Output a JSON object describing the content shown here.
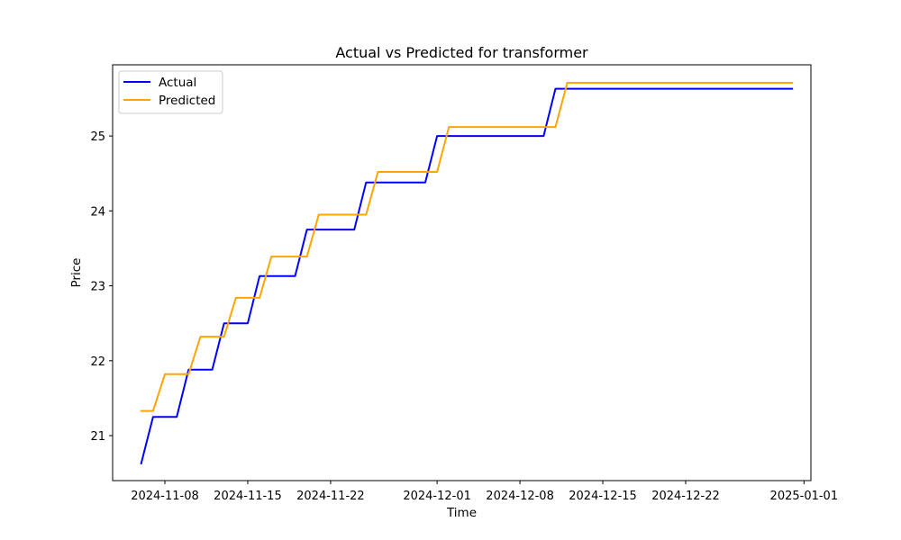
{
  "chart_data": {
    "type": "line",
    "title": "Actual vs Predicted for transformer",
    "xlabel": "Time",
    "ylabel": "Price",
    "x_ticks": [
      "2024-11-08",
      "2024-11-15",
      "2024-11-22",
      "2024-12-01",
      "2024-12-08",
      "2024-12-15",
      "2024-12-22",
      "2025-01-01"
    ],
    "y_ticks": [
      "21",
      "22",
      "23",
      "24",
      "25"
    ],
    "xlim": [
      "2024-11-03T14:00",
      "2025-01-01T14:00"
    ],
    "ylim": [
      20.4,
      25.95
    ],
    "grid": false,
    "legend": "top-left",
    "series": [
      {
        "name": "Actual",
        "color": "#0000ff",
        "points": [
          [
            "2024-11-06",
            20.63
          ],
          [
            "2024-11-07",
            21.25
          ],
          [
            "2024-11-08",
            21.25
          ],
          [
            "2024-11-09",
            21.25
          ],
          [
            "2024-11-10",
            21.88
          ],
          [
            "2024-11-11",
            21.88
          ],
          [
            "2024-11-12",
            21.88
          ],
          [
            "2024-11-13",
            22.5
          ],
          [
            "2024-11-14",
            22.5
          ],
          [
            "2024-11-15",
            22.5
          ],
          [
            "2024-11-16",
            23.13
          ],
          [
            "2024-11-17",
            23.13
          ],
          [
            "2024-11-18",
            23.13
          ],
          [
            "2024-11-19",
            23.13
          ],
          [
            "2024-11-20",
            23.75
          ],
          [
            "2024-11-21",
            23.75
          ],
          [
            "2024-11-22",
            23.75
          ],
          [
            "2024-11-23",
            23.75
          ],
          [
            "2024-11-24",
            23.75
          ],
          [
            "2024-11-25",
            24.38
          ],
          [
            "2024-11-26",
            24.38
          ],
          [
            "2024-11-27",
            24.38
          ],
          [
            "2024-11-28",
            24.38
          ],
          [
            "2024-11-29",
            24.38
          ],
          [
            "2024-11-30",
            24.38
          ],
          [
            "2024-12-01",
            25.0
          ],
          [
            "2024-12-02",
            25.0
          ],
          [
            "2024-12-03",
            25.0
          ],
          [
            "2024-12-04",
            25.0
          ],
          [
            "2024-12-05",
            25.0
          ],
          [
            "2024-12-06",
            25.0
          ],
          [
            "2024-12-07",
            25.0
          ],
          [
            "2024-12-08",
            25.0
          ],
          [
            "2024-12-09",
            25.0
          ],
          [
            "2024-12-10",
            25.0
          ],
          [
            "2024-12-11",
            25.63
          ],
          [
            "2024-12-12",
            25.63
          ],
          [
            "2024-12-13",
            25.63
          ],
          [
            "2024-12-14",
            25.63
          ],
          [
            "2024-12-15",
            25.63
          ],
          [
            "2024-12-16",
            25.63
          ],
          [
            "2024-12-17",
            25.63
          ],
          [
            "2024-12-18",
            25.63
          ],
          [
            "2024-12-19",
            25.63
          ],
          [
            "2024-12-20",
            25.63
          ],
          [
            "2024-12-21",
            25.63
          ],
          [
            "2024-12-22",
            25.63
          ],
          [
            "2024-12-23",
            25.63
          ],
          [
            "2024-12-24",
            25.63
          ],
          [
            "2024-12-25",
            25.63
          ],
          [
            "2024-12-26",
            25.63
          ],
          [
            "2024-12-27",
            25.63
          ],
          [
            "2024-12-28",
            25.63
          ],
          [
            "2024-12-29",
            25.63
          ],
          [
            "2024-12-30",
            25.63
          ],
          [
            "2024-12-31",
            25.63
          ]
        ]
      },
      {
        "name": "Predicted",
        "color": "#ffa500",
        "points": [
          [
            "2024-11-06",
            21.33
          ],
          [
            "2024-11-07",
            21.33
          ],
          [
            "2024-11-08",
            21.82
          ],
          [
            "2024-11-09",
            21.82
          ],
          [
            "2024-11-10",
            21.82
          ],
          [
            "2024-11-11",
            22.32
          ],
          [
            "2024-11-12",
            22.32
          ],
          [
            "2024-11-13",
            22.32
          ],
          [
            "2024-11-14",
            22.84
          ],
          [
            "2024-11-15",
            22.84
          ],
          [
            "2024-11-16",
            22.84
          ],
          [
            "2024-11-17",
            23.39
          ],
          [
            "2024-11-18",
            23.39
          ],
          [
            "2024-11-19",
            23.39
          ],
          [
            "2024-11-20",
            23.39
          ],
          [
            "2024-11-21",
            23.95
          ],
          [
            "2024-11-22",
            23.95
          ],
          [
            "2024-11-23",
            23.95
          ],
          [
            "2024-11-24",
            23.95
          ],
          [
            "2024-11-25",
            23.95
          ],
          [
            "2024-11-26",
            24.52
          ],
          [
            "2024-11-27",
            24.52
          ],
          [
            "2024-11-28",
            24.52
          ],
          [
            "2024-11-29",
            24.52
          ],
          [
            "2024-11-30",
            24.52
          ],
          [
            "2024-12-01",
            24.52
          ],
          [
            "2024-12-02",
            25.12
          ],
          [
            "2024-12-03",
            25.12
          ],
          [
            "2024-12-04",
            25.12
          ],
          [
            "2024-12-05",
            25.12
          ],
          [
            "2024-12-06",
            25.12
          ],
          [
            "2024-12-07",
            25.12
          ],
          [
            "2024-12-08",
            25.12
          ],
          [
            "2024-12-09",
            25.12
          ],
          [
            "2024-12-10",
            25.12
          ],
          [
            "2024-12-11",
            25.12
          ],
          [
            "2024-12-12",
            25.71
          ],
          [
            "2024-12-13",
            25.71
          ],
          [
            "2024-12-14",
            25.71
          ],
          [
            "2024-12-15",
            25.71
          ],
          [
            "2024-12-16",
            25.71
          ],
          [
            "2024-12-17",
            25.71
          ],
          [
            "2024-12-18",
            25.71
          ],
          [
            "2024-12-19",
            25.71
          ],
          [
            "2024-12-20",
            25.71
          ],
          [
            "2024-12-21",
            25.71
          ],
          [
            "2024-12-22",
            25.71
          ],
          [
            "2024-12-23",
            25.71
          ],
          [
            "2024-12-24",
            25.71
          ],
          [
            "2024-12-25",
            25.71
          ],
          [
            "2024-12-26",
            25.71
          ],
          [
            "2024-12-27",
            25.71
          ],
          [
            "2024-12-28",
            25.71
          ],
          [
            "2024-12-29",
            25.71
          ],
          [
            "2024-12-30",
            25.71
          ],
          [
            "2024-12-31",
            25.71
          ]
        ]
      }
    ]
  }
}
